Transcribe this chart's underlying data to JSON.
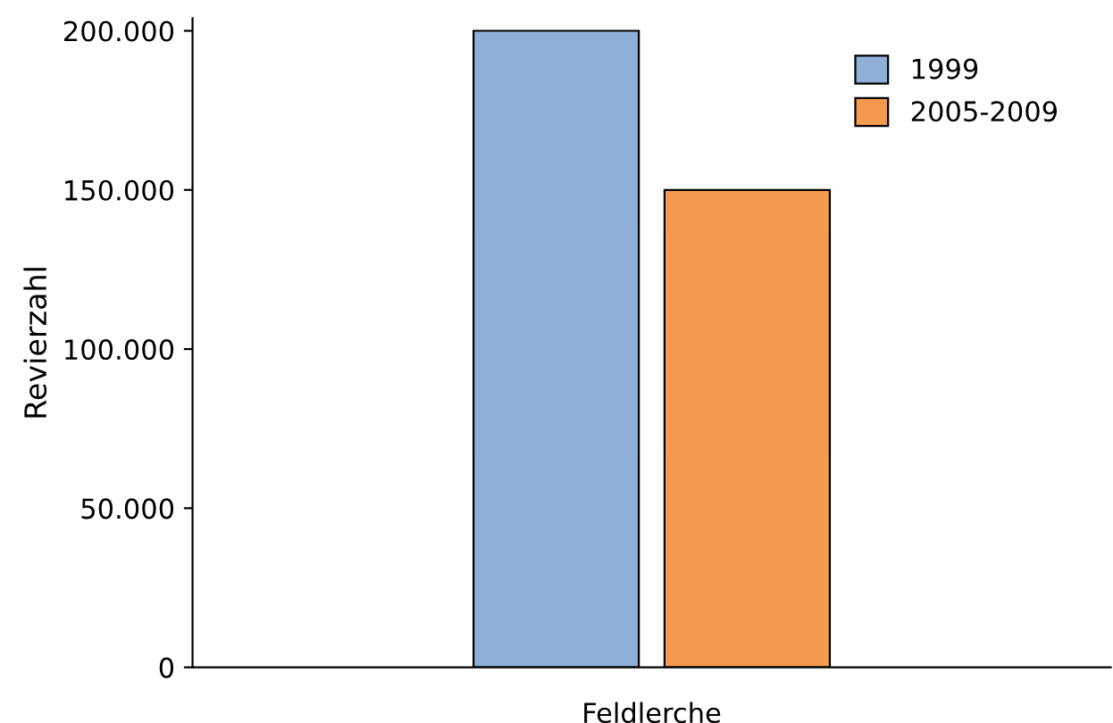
{
  "chart_data": {
    "type": "bar",
    "ylabel": "Revierzahl",
    "categories": [
      "Feldlerche"
    ],
    "series": [
      {
        "name": "1999",
        "color": "#8eb0d8",
        "values": [
          200000
        ]
      },
      {
        "name": "2005-2009",
        "color": "#f5994f",
        "values": [
          150000
        ]
      }
    ],
    "ylim": [
      0,
      204000
    ],
    "yticks": [
      {
        "value": 0,
        "label": "0"
      },
      {
        "value": 50000,
        "label": "50.000"
      },
      {
        "value": 100000,
        "label": "100.000"
      },
      {
        "value": 150000,
        "label": "150.000"
      },
      {
        "value": 200000,
        "label": "200.000"
      }
    ],
    "grid": false,
    "legend": "top right"
  }
}
